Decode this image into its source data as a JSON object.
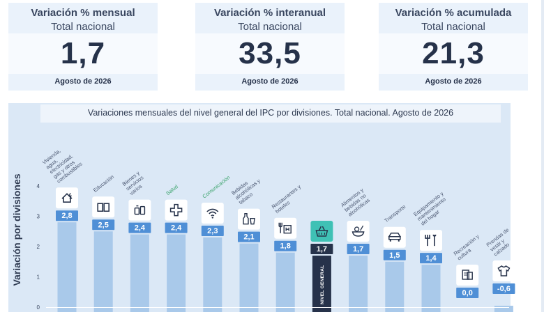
{
  "kpis": [
    {
      "title": "Variación % mensual",
      "subtitle": "Total nacional",
      "value": "1,7",
      "date": "Agosto de 2026"
    },
    {
      "title": "Variación % interanual",
      "subtitle": "Total nacional",
      "value": "33,5",
      "date": "Agosto de 2026"
    },
    {
      "title": "Variación % acumulada",
      "subtitle": "Total nacional",
      "value": "21,3",
      "date": "Agosto de 2026"
    }
  ],
  "chart_data": {
    "type": "bar",
    "title": "Variaciones mensuales del nivel general del IPC por divisiones. Total nacional. Agosto de 2026",
    "ylabel": "Variación por divisiones",
    "xlabel": "",
    "ylim": [
      0,
      4
    ],
    "yticks": [
      "0",
      "1",
      "2",
      "3",
      "4"
    ],
    "grid": false,
    "categories": [
      "Vivienda, agua, electricidad, gas y otros combustibles",
      "Educación",
      "Bienes y servicios varios",
      "Salud",
      "Comunicación",
      "Bebidas alcohólicas y tabaco",
      "Restaurantes y hoteles",
      "NIVEL GENERAL",
      "Alimentos y bebidas no alcohólicas",
      "Transporte",
      "Equipamiento y mantenimiento del hogar",
      "Recreación y cultura",
      "Prendas de vestir y calzado"
    ],
    "values": [
      2.8,
      2.5,
      2.4,
      2.4,
      2.3,
      2.1,
      1.8,
      1.7,
      1.7,
      1.5,
      1.4,
      0.0,
      -0.6
    ],
    "value_labels": [
      "2,8",
      "2,5",
      "2,4",
      "2,4",
      "2,3",
      "2,1",
      "1,8",
      "1,7",
      "1,7",
      "1,5",
      "1,4",
      "0,0",
      "-0,6"
    ],
    "highlighted_category": "NIVEL GENERAL",
    "bar_label": "NIVEL GENERAL",
    "highlighted_label_categories": [
      "Salud",
      "Comunicación"
    ],
    "icons": [
      "house-icon",
      "book-icon",
      "bottles-icon",
      "health-cross-icon",
      "wifi-icon",
      "bottle-glass-icon",
      "fork-knife-hotel-icon",
      "basket-icon",
      "food-bowl-icon",
      "car-icon",
      "tools-icon",
      "media-icon",
      "tshirt-icon"
    ],
    "colors": {
      "bar": "#a9c9ea",
      "bar_highlight": "#26324a",
      "badge": "#4f8fd6",
      "badge_highlight": "#26324a",
      "icon_highlight_bg": "#3fc1b5",
      "panel": "#dbe8f6",
      "category_highlight": "#3aa36a"
    }
  }
}
